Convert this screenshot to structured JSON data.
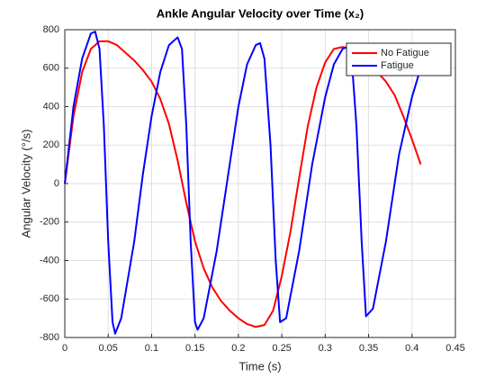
{
  "chart_data": {
    "type": "line",
    "title": "Ankle Angular Velocity over Time (x₂)",
    "xlabel": "Time (s)",
    "ylabel": "Angular Velocity (°/s)",
    "xlim": [
      0,
      0.45
    ],
    "xticks": [
      0,
      0.05,
      0.1,
      0.15,
      0.2,
      0.25,
      0.3,
      0.35,
      0.4,
      0.45
    ],
    "ylim": [
      -800,
      800
    ],
    "yticks": [
      -800,
      -600,
      -400,
      -200,
      0,
      200,
      400,
      600,
      800
    ],
    "grid": true,
    "legend": "northeast",
    "series": [
      {
        "name": "No Fatigue",
        "color": "#ff0000",
        "x": [
          0,
          0.01,
          0.02,
          0.03,
          0.04,
          0.05,
          0.06,
          0.07,
          0.08,
          0.09,
          0.1,
          0.11,
          0.12,
          0.13,
          0.14,
          0.15,
          0.16,
          0.17,
          0.18,
          0.19,
          0.2,
          0.21,
          0.22,
          0.23,
          0.24,
          0.25,
          0.26,
          0.27,
          0.28,
          0.29,
          0.3,
          0.31,
          0.32,
          0.33,
          0.34,
          0.35,
          0.36,
          0.37,
          0.38,
          0.39,
          0.4,
          0.41
        ],
        "values": [
          0,
          350,
          580,
          700,
          740,
          740,
          720,
          680,
          640,
          590,
          530,
          440,
          310,
          120,
          -100,
          -300,
          -440,
          -540,
          -610,
          -660,
          -700,
          -730,
          -745,
          -735,
          -660,
          -480,
          -250,
          30,
          300,
          500,
          630,
          700,
          710,
          700,
          660,
          620,
          580,
          530,
          460,
          350,
          230,
          100
        ]
      },
      {
        "name": "Fatigue",
        "color": "#0000ff",
        "x": [
          0,
          0.01,
          0.02,
          0.03,
          0.035,
          0.04,
          0.045,
          0.05,
          0.055,
          0.058,
          0.065,
          0.08,
          0.09,
          0.1,
          0.11,
          0.12,
          0.13,
          0.135,
          0.14,
          0.145,
          0.15,
          0.153,
          0.16,
          0.175,
          0.19,
          0.2,
          0.21,
          0.22,
          0.225,
          0.23,
          0.237,
          0.243,
          0.248,
          0.255,
          0.27,
          0.285,
          0.3,
          0.31,
          0.32,
          0.325,
          0.33,
          0.336,
          0.342,
          0.347,
          0.355,
          0.37,
          0.385,
          0.4,
          0.41
        ],
        "values": [
          0,
          400,
          650,
          780,
          790,
          700,
          300,
          -300,
          -720,
          -780,
          -700,
          -300,
          50,
          350,
          580,
          720,
          760,
          700,
          300,
          -300,
          -720,
          -760,
          -700,
          -350,
          100,
          400,
          620,
          720,
          730,
          650,
          200,
          -400,
          -720,
          -700,
          -350,
          100,
          450,
          620,
          700,
          710,
          680,
          300,
          -300,
          -690,
          -650,
          -300,
          150,
          450,
          600
        ]
      }
    ]
  }
}
